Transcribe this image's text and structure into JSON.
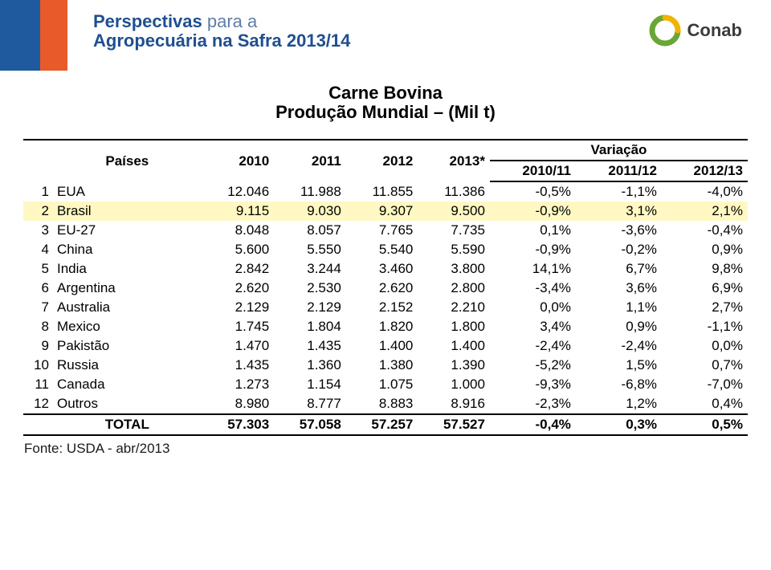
{
  "header": {
    "line1_bold": "Perspectivas",
    "line1_light": " para a",
    "line2": "Agropecuária na Safra 2013/14",
    "logo_text": "Conab",
    "accent_blue": "#1f5a9e",
    "accent_red": "#e85a2a"
  },
  "title": {
    "line1": "Carne Bovina",
    "line2": "Produção Mundial – (Mil t)"
  },
  "table": {
    "col_headers": {
      "countries": "Países",
      "years": [
        "2010",
        "2011",
        "2012",
        "2013*"
      ],
      "variation_label": "Variação",
      "variation_cols": [
        "2010/11",
        "2011/12",
        "2012/13"
      ]
    },
    "rows": [
      {
        "idx": "1",
        "name": "EUA",
        "hl": false,
        "y": [
          "12.046",
          "11.988",
          "11.855",
          "11.386"
        ],
        "v": [
          "-0,5%",
          "-1,1%",
          "-4,0%"
        ]
      },
      {
        "idx": "2",
        "name": "Brasil",
        "hl": true,
        "y": [
          "9.115",
          "9.030",
          "9.307",
          "9.500"
        ],
        "v": [
          "-0,9%",
          "3,1%",
          "2,1%"
        ]
      },
      {
        "idx": "3",
        "name": "EU-27",
        "hl": false,
        "y": [
          "8.048",
          "8.057",
          "7.765",
          "7.735"
        ],
        "v": [
          "0,1%",
          "-3,6%",
          "-0,4%"
        ]
      },
      {
        "idx": "4",
        "name": "China",
        "hl": false,
        "y": [
          "5.600",
          "5.550",
          "5.540",
          "5.590"
        ],
        "v": [
          "-0,9%",
          "-0,2%",
          "0,9%"
        ]
      },
      {
        "idx": "5",
        "name": "India",
        "hl": false,
        "y": [
          "2.842",
          "3.244",
          "3.460",
          "3.800"
        ],
        "v": [
          "14,1%",
          "6,7%",
          "9,8%"
        ]
      },
      {
        "idx": "6",
        "name": "Argentina",
        "hl": false,
        "y": [
          "2.620",
          "2.530",
          "2.620",
          "2.800"
        ],
        "v": [
          "-3,4%",
          "3,6%",
          "6,9%"
        ]
      },
      {
        "idx": "7",
        "name": "Australia",
        "hl": false,
        "y": [
          "2.129",
          "2.129",
          "2.152",
          "2.210"
        ],
        "v": [
          "0,0%",
          "1,1%",
          "2,7%"
        ]
      },
      {
        "idx": "8",
        "name": "Mexico",
        "hl": false,
        "y": [
          "1.745",
          "1.804",
          "1.820",
          "1.800"
        ],
        "v": [
          "3,4%",
          "0,9%",
          "-1,1%"
        ]
      },
      {
        "idx": "9",
        "name": "Pakistão",
        "hl": false,
        "y": [
          "1.470",
          "1.435",
          "1.400",
          "1.400"
        ],
        "v": [
          "-2,4%",
          "-2,4%",
          "0,0%"
        ]
      },
      {
        "idx": "10",
        "name": "Russia",
        "hl": false,
        "y": [
          "1.435",
          "1.360",
          "1.380",
          "1.390"
        ],
        "v": [
          "-5,2%",
          "1,5%",
          "0,7%"
        ]
      },
      {
        "idx": "11",
        "name": "Canada",
        "hl": false,
        "y": [
          "1.273",
          "1.154",
          "1.075",
          "1.000"
        ],
        "v": [
          "-9,3%",
          "-6,8%",
          "-7,0%"
        ]
      },
      {
        "idx": "12",
        "name": "Outros",
        "hl": false,
        "y": [
          "8.980",
          "8.777",
          "8.883",
          "8.916"
        ],
        "v": [
          "-2,3%",
          "1,2%",
          "0,4%"
        ]
      }
    ],
    "total": {
      "label": "TOTAL",
      "y": [
        "57.303",
        "57.058",
        "57.257",
        "57.527"
      ],
      "v": [
        "-0,4%",
        "0,3%",
        "0,5%"
      ]
    }
  },
  "source": "Fonte: USDA - abr/2013",
  "style": {
    "highlight_bg": "#fff8c2",
    "font_color": "#000000"
  }
}
